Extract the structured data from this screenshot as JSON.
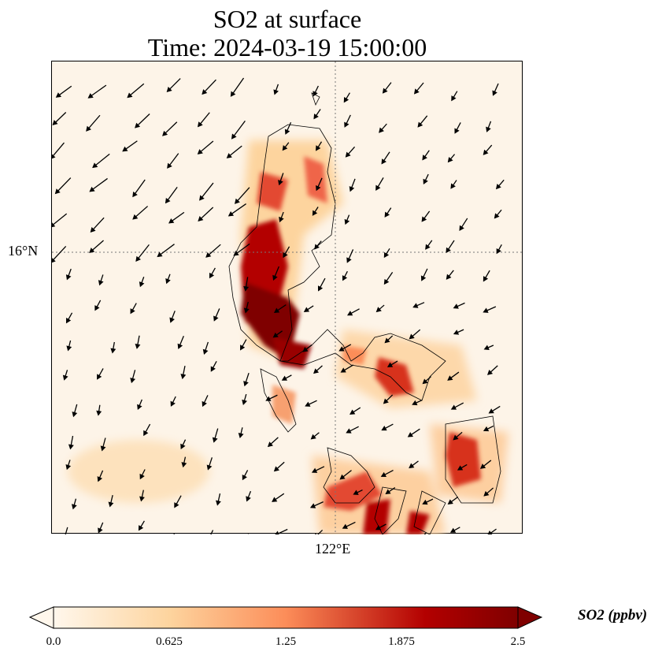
{
  "chart_data": {
    "type": "heatmap",
    "title": "SO2 at surface",
    "subtitle": "Time: 2024-03-19 15:00:00",
    "lat_tick": "16°N",
    "lon_tick": "122°E",
    "colorbar": {
      "label": "SO2 (ppbv)",
      "range": [
        0.0,
        2.5
      ],
      "ticks": [
        "0.0",
        "0.625",
        "1.25",
        "1.875",
        "2.5"
      ],
      "extend": "both",
      "colormap": "OrRd",
      "colors": [
        "#fff7ec",
        "#fdd49e",
        "#fc8d59",
        "#d7301f",
        "#7f0000"
      ]
    },
    "plumes": [
      {
        "max_ppbv": 2.5
      },
      {
        "max_ppbv": 2.5
      },
      {
        "max_ppbv": 2.0
      },
      {
        "max_ppbv": 2.2
      }
    ]
  }
}
